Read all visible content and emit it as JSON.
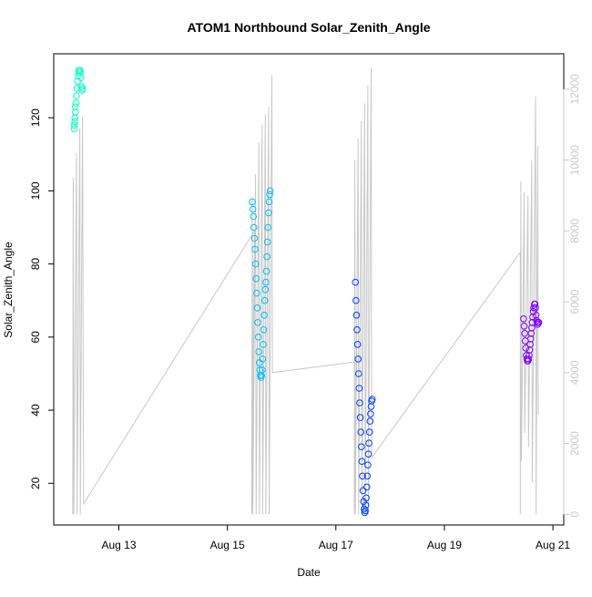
{
  "chart_data": {
    "type": "scatter",
    "title": "ATOM1 Northbound Solar_Zenith_Angle",
    "xlabel": "Date",
    "ylabel": "Solar_Zenith_Angle",
    "x_axis": {
      "ticks": [
        {
          "value": 13,
          "label": "Aug 13"
        },
        {
          "value": 15,
          "label": "Aug 15"
        },
        {
          "value": 17,
          "label": "Aug 17"
        },
        {
          "value": 19,
          "label": "Aug 19"
        },
        {
          "value": 21,
          "label": "Aug 21"
        }
      ],
      "range": [
        11.8,
        21.2
      ]
    },
    "y_axis": {
      "ticks": [
        20,
        40,
        60,
        80,
        100,
        120
      ],
      "range": [
        8.6,
        137.5
      ]
    },
    "y2_axis": {
      "ticks": [
        0,
        2000,
        4000,
        6000,
        8000,
        10000,
        12000
      ],
      "range": [
        -300,
        13000
      ],
      "color": "#c8c8c8"
    },
    "grid": false,
    "legend": "none",
    "colors": {
      "aug12": "#00ffc0",
      "aug15": "#00bfff",
      "aug17": "#0040ff",
      "aug20": "#8000ff",
      "secondary_line": "#c8c8c8",
      "axis": "#000000"
    },
    "series": [
      {
        "color_key": "aug12",
        "points": [
          [
            12.18,
            117
          ],
          [
            12.18,
            118
          ],
          [
            12.19,
            119
          ],
          [
            12.19,
            120
          ],
          [
            12.2,
            121.5
          ],
          [
            12.2,
            123
          ],
          [
            12.21,
            124
          ],
          [
            12.22,
            126
          ],
          [
            12.23,
            128
          ],
          [
            12.24,
            130
          ],
          [
            12.25,
            131.5
          ],
          [
            12.26,
            132.5
          ],
          [
            12.27,
            133
          ],
          [
            12.28,
            133
          ],
          [
            12.29,
            132.5
          ],
          [
            12.3,
            131
          ],
          [
            12.31,
            128.5
          ],
          [
            12.32,
            127.5
          ],
          [
            12.33,
            128
          ]
        ]
      },
      {
        "color_key": "aug15",
        "points": [
          [
            15.46,
            97
          ],
          [
            15.47,
            95
          ],
          [
            15.48,
            93
          ],
          [
            15.49,
            90
          ],
          [
            15.5,
            87
          ],
          [
            15.51,
            84
          ],
          [
            15.52,
            80
          ],
          [
            15.53,
            76
          ],
          [
            15.54,
            72
          ],
          [
            15.55,
            68
          ],
          [
            15.56,
            64
          ],
          [
            15.57,
            60
          ],
          [
            15.58,
            56
          ],
          [
            15.59,
            53
          ],
          [
            15.6,
            51
          ],
          [
            15.61,
            49.5
          ],
          [
            15.62,
            49
          ],
          [
            15.63,
            49.5
          ],
          [
            15.64,
            51
          ],
          [
            15.65,
            54
          ],
          [
            15.66,
            58
          ],
          [
            15.67,
            62
          ],
          [
            15.68,
            66
          ],
          [
            15.69,
            70
          ],
          [
            15.7,
            73
          ],
          [
            15.71,
            75
          ],
          [
            15.72,
            78
          ],
          [
            15.73,
            82
          ],
          [
            15.74,
            86
          ],
          [
            15.75,
            90
          ],
          [
            15.76,
            94
          ],
          [
            15.77,
            97
          ],
          [
            15.78,
            99
          ],
          [
            15.79,
            100
          ]
        ]
      },
      {
        "color_key": "aug17",
        "points": [
          [
            17.36,
            75
          ],
          [
            17.37,
            70
          ],
          [
            17.38,
            66
          ],
          [
            17.39,
            62
          ],
          [
            17.4,
            58
          ],
          [
            17.41,
            54
          ],
          [
            17.42,
            50
          ],
          [
            17.43,
            46
          ],
          [
            17.44,
            42
          ],
          [
            17.45,
            38
          ],
          [
            17.46,
            34
          ],
          [
            17.47,
            30
          ],
          [
            17.48,
            26
          ],
          [
            17.49,
            22
          ],
          [
            17.5,
            18
          ],
          [
            17.51,
            15
          ],
          [
            17.52,
            13
          ],
          [
            17.53,
            12
          ],
          [
            17.54,
            12.5
          ],
          [
            17.55,
            14
          ],
          [
            17.56,
            16
          ],
          [
            17.57,
            19
          ],
          [
            17.58,
            22
          ],
          [
            17.59,
            25
          ],
          [
            17.6,
            28
          ],
          [
            17.61,
            31
          ],
          [
            17.62,
            34
          ],
          [
            17.63,
            37
          ],
          [
            17.64,
            39
          ],
          [
            17.65,
            41
          ],
          [
            17.66,
            42.5
          ],
          [
            17.67,
            43
          ]
        ]
      },
      {
        "color_key": "aug20",
        "points": [
          [
            20.46,
            65
          ],
          [
            20.47,
            63
          ],
          [
            20.48,
            61
          ],
          [
            20.49,
            59
          ],
          [
            20.5,
            57
          ],
          [
            20.51,
            55
          ],
          [
            20.52,
            54
          ],
          [
            20.53,
            53.5
          ],
          [
            20.54,
            53.5
          ],
          [
            20.55,
            54
          ],
          [
            20.56,
            55
          ],
          [
            20.57,
            56.5
          ],
          [
            20.58,
            58
          ],
          [
            20.59,
            59.5
          ],
          [
            20.6,
            61
          ],
          [
            20.61,
            62.5
          ],
          [
            20.62,
            64
          ],
          [
            20.63,
            65.5
          ],
          [
            20.64,
            67
          ],
          [
            20.65,
            68
          ],
          [
            20.66,
            69
          ],
          [
            20.67,
            69
          ],
          [
            20.68,
            68
          ],
          [
            20.69,
            66
          ],
          [
            20.7,
            64.5
          ],
          [
            20.71,
            64
          ],
          [
            20.72,
            63.5
          ],
          [
            20.73,
            64
          ],
          [
            20.74,
            64
          ]
        ]
      }
    ],
    "secondary_series": {
      "axis": "y2",
      "color_key": "secondary_line",
      "points": [
        [
          12.15,
          0
        ],
        [
          12.16,
          9500
        ],
        [
          12.17,
          0
        ],
        [
          12.22,
          10200
        ],
        [
          12.23,
          0
        ],
        [
          12.28,
          10900
        ],
        [
          12.29,
          0
        ],
        [
          12.33,
          11200
        ],
        [
          12.35,
          300
        ],
        [
          15.5,
          8000
        ],
        [
          15.45,
          0
        ],
        [
          15.46,
          8900
        ],
        [
          15.47,
          0
        ],
        [
          15.52,
          9600
        ],
        [
          15.53,
          0
        ],
        [
          15.58,
          10500
        ],
        [
          15.59,
          0
        ],
        [
          15.64,
          11000
        ],
        [
          15.65,
          0
        ],
        [
          15.7,
          11300
        ],
        [
          15.71,
          0
        ],
        [
          15.76,
          11500
        ],
        [
          15.77,
          0
        ],
        [
          15.82,
          12400
        ],
        [
          15.83,
          4000
        ],
        [
          17.35,
          4300
        ],
        [
          17.34,
          0
        ],
        [
          17.35,
          10000
        ],
        [
          17.36,
          0
        ],
        [
          17.41,
          10600
        ],
        [
          17.42,
          0
        ],
        [
          17.47,
          11100
        ],
        [
          17.48,
          0
        ],
        [
          17.53,
          11600
        ],
        [
          17.54,
          0
        ],
        [
          17.59,
          12100
        ],
        [
          17.6,
          0
        ],
        [
          17.65,
          12600
        ],
        [
          17.66,
          1600
        ],
        [
          20.4,
          7400
        ],
        [
          20.4,
          0
        ],
        [
          20.41,
          9400
        ],
        [
          20.42,
          1500
        ],
        [
          20.47,
          9100
        ],
        [
          20.48,
          2300
        ],
        [
          20.54,
          9000
        ],
        [
          20.55,
          1900
        ],
        [
          20.61,
          10000
        ],
        [
          20.62,
          900
        ],
        [
          20.68,
          11800
        ],
        [
          20.69,
          0
        ],
        [
          20.72,
          10400
        ],
        [
          20.73,
          2800
        ]
      ]
    }
  }
}
